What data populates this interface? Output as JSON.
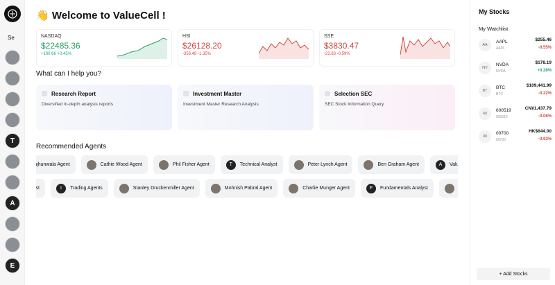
{
  "sidebar": {
    "search": "Se",
    "avatars": [
      "",
      "",
      "",
      "",
      "T",
      "",
      "",
      "A",
      "",
      "",
      "E"
    ]
  },
  "header": {
    "title": "👋 Welcome to ValueCell !"
  },
  "indices": [
    {
      "name": "NASDAQ",
      "value": "$22485.36",
      "change": "+100.66 +0.45%"
    },
    {
      "name": "HSI",
      "value": "$26128.20",
      "change": "-356.48 -1.35%"
    },
    {
      "name": "SSE",
      "value": "$3830.47",
      "change": "-22.83 -0.59%"
    }
  ],
  "help": {
    "title": "What can I help you?",
    "cards": [
      {
        "title": "Research Report",
        "desc": "Diversified in-depth analysis reports"
      },
      {
        "title": "Investment Master",
        "desc": "Investment Master Research Analysis"
      },
      {
        "title": "Selection SEC",
        "desc": "SEC Stock Information Query"
      }
    ]
  },
  "agents": {
    "title": "Recommended Agents",
    "row1": [
      "Jhunjhunwala Agent",
      "Cathie Wood Agent",
      "Phil Fisher Agent",
      "Technical Analyst",
      "Peter Lynch Agent",
      "Ben Graham Agent",
      "Valu"
    ],
    "row2": [
      "Analyst",
      "Trading Agents",
      "Stanley Druckenmiller Agent",
      "Mohnish Pabral Agent",
      "Charlie Munger Agent",
      "Fundamentals Analyst"
    ],
    "row1_letters": [
      "",
      "",
      "",
      "T",
      "",
      "",
      "A"
    ],
    "row2_letters": [
      "",
      "I",
      "",
      "",
      "",
      "F"
    ]
  },
  "stocks": {
    "title": "My Stocks",
    "subtitle": "My Watchlist",
    "items": [
      {
        "badge": "AA",
        "symbol": "AAPL",
        "price": "$255.46",
        "code": "AAPL",
        "change": "-0.55%"
      },
      {
        "badge": "NV",
        "symbol": "NVDA",
        "price": "$178.19",
        "code": "NVDA",
        "change": "+0.28%"
      },
      {
        "badge": "BT",
        "symbol": "BTC",
        "price": "$109,441.99",
        "code": "BTC",
        "change": "-0.22%"
      },
      {
        "badge": "60",
        "symbol": "600519",
        "price": "CN¥1,437.79",
        "code": "600519",
        "change": "-0.06%"
      },
      {
        "badge": "00",
        "symbol": "00700",
        "price": "HK$644.00",
        "code": "00700",
        "change": "-0.92%"
      }
    ],
    "button": "+ Add Stocks"
  }
}
